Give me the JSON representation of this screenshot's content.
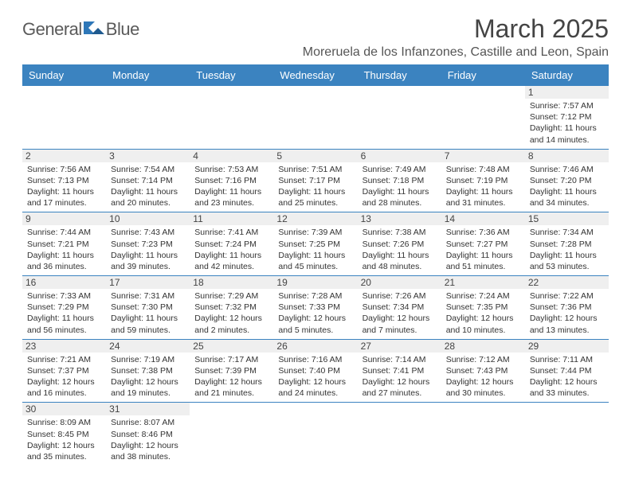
{
  "logo": {
    "text1": "General",
    "text2": "Blue"
  },
  "title": "March 2025",
  "location": "Moreruela de los Infanzones, Castille and Leon, Spain",
  "colors": {
    "header_bg": "#3b83c0",
    "header_text": "#ffffff",
    "daynum_bg": "#efefef",
    "border": "#3b83c0",
    "logo_blue": "#2e77b8",
    "logo_gray": "#5a5a5a"
  },
  "weekdays": [
    "Sunday",
    "Monday",
    "Tuesday",
    "Wednesday",
    "Thursday",
    "Friday",
    "Saturday"
  ],
  "weeks": [
    [
      null,
      null,
      null,
      null,
      null,
      null,
      {
        "n": "1",
        "sr": "Sunrise: 7:57 AM",
        "ss": "Sunset: 7:12 PM",
        "dl": "Daylight: 11 hours and 14 minutes."
      }
    ],
    [
      {
        "n": "2",
        "sr": "Sunrise: 7:56 AM",
        "ss": "Sunset: 7:13 PM",
        "dl": "Daylight: 11 hours and 17 minutes."
      },
      {
        "n": "3",
        "sr": "Sunrise: 7:54 AM",
        "ss": "Sunset: 7:14 PM",
        "dl": "Daylight: 11 hours and 20 minutes."
      },
      {
        "n": "4",
        "sr": "Sunrise: 7:53 AM",
        "ss": "Sunset: 7:16 PM",
        "dl": "Daylight: 11 hours and 23 minutes."
      },
      {
        "n": "5",
        "sr": "Sunrise: 7:51 AM",
        "ss": "Sunset: 7:17 PM",
        "dl": "Daylight: 11 hours and 25 minutes."
      },
      {
        "n": "6",
        "sr": "Sunrise: 7:49 AM",
        "ss": "Sunset: 7:18 PM",
        "dl": "Daylight: 11 hours and 28 minutes."
      },
      {
        "n": "7",
        "sr": "Sunrise: 7:48 AM",
        "ss": "Sunset: 7:19 PM",
        "dl": "Daylight: 11 hours and 31 minutes."
      },
      {
        "n": "8",
        "sr": "Sunrise: 7:46 AM",
        "ss": "Sunset: 7:20 PM",
        "dl": "Daylight: 11 hours and 34 minutes."
      }
    ],
    [
      {
        "n": "9",
        "sr": "Sunrise: 7:44 AM",
        "ss": "Sunset: 7:21 PM",
        "dl": "Daylight: 11 hours and 36 minutes."
      },
      {
        "n": "10",
        "sr": "Sunrise: 7:43 AM",
        "ss": "Sunset: 7:23 PM",
        "dl": "Daylight: 11 hours and 39 minutes."
      },
      {
        "n": "11",
        "sr": "Sunrise: 7:41 AM",
        "ss": "Sunset: 7:24 PM",
        "dl": "Daylight: 11 hours and 42 minutes."
      },
      {
        "n": "12",
        "sr": "Sunrise: 7:39 AM",
        "ss": "Sunset: 7:25 PM",
        "dl": "Daylight: 11 hours and 45 minutes."
      },
      {
        "n": "13",
        "sr": "Sunrise: 7:38 AM",
        "ss": "Sunset: 7:26 PM",
        "dl": "Daylight: 11 hours and 48 minutes."
      },
      {
        "n": "14",
        "sr": "Sunrise: 7:36 AM",
        "ss": "Sunset: 7:27 PM",
        "dl": "Daylight: 11 hours and 51 minutes."
      },
      {
        "n": "15",
        "sr": "Sunrise: 7:34 AM",
        "ss": "Sunset: 7:28 PM",
        "dl": "Daylight: 11 hours and 53 minutes."
      }
    ],
    [
      {
        "n": "16",
        "sr": "Sunrise: 7:33 AM",
        "ss": "Sunset: 7:29 PM",
        "dl": "Daylight: 11 hours and 56 minutes."
      },
      {
        "n": "17",
        "sr": "Sunrise: 7:31 AM",
        "ss": "Sunset: 7:30 PM",
        "dl": "Daylight: 11 hours and 59 minutes."
      },
      {
        "n": "18",
        "sr": "Sunrise: 7:29 AM",
        "ss": "Sunset: 7:32 PM",
        "dl": "Daylight: 12 hours and 2 minutes."
      },
      {
        "n": "19",
        "sr": "Sunrise: 7:28 AM",
        "ss": "Sunset: 7:33 PM",
        "dl": "Daylight: 12 hours and 5 minutes."
      },
      {
        "n": "20",
        "sr": "Sunrise: 7:26 AM",
        "ss": "Sunset: 7:34 PM",
        "dl": "Daylight: 12 hours and 7 minutes."
      },
      {
        "n": "21",
        "sr": "Sunrise: 7:24 AM",
        "ss": "Sunset: 7:35 PM",
        "dl": "Daylight: 12 hours and 10 minutes."
      },
      {
        "n": "22",
        "sr": "Sunrise: 7:22 AM",
        "ss": "Sunset: 7:36 PM",
        "dl": "Daylight: 12 hours and 13 minutes."
      }
    ],
    [
      {
        "n": "23",
        "sr": "Sunrise: 7:21 AM",
        "ss": "Sunset: 7:37 PM",
        "dl": "Daylight: 12 hours and 16 minutes."
      },
      {
        "n": "24",
        "sr": "Sunrise: 7:19 AM",
        "ss": "Sunset: 7:38 PM",
        "dl": "Daylight: 12 hours and 19 minutes."
      },
      {
        "n": "25",
        "sr": "Sunrise: 7:17 AM",
        "ss": "Sunset: 7:39 PM",
        "dl": "Daylight: 12 hours and 21 minutes."
      },
      {
        "n": "26",
        "sr": "Sunrise: 7:16 AM",
        "ss": "Sunset: 7:40 PM",
        "dl": "Daylight: 12 hours and 24 minutes."
      },
      {
        "n": "27",
        "sr": "Sunrise: 7:14 AM",
        "ss": "Sunset: 7:41 PM",
        "dl": "Daylight: 12 hours and 27 minutes."
      },
      {
        "n": "28",
        "sr": "Sunrise: 7:12 AM",
        "ss": "Sunset: 7:43 PM",
        "dl": "Daylight: 12 hours and 30 minutes."
      },
      {
        "n": "29",
        "sr": "Sunrise: 7:11 AM",
        "ss": "Sunset: 7:44 PM",
        "dl": "Daylight: 12 hours and 33 minutes."
      }
    ],
    [
      {
        "n": "30",
        "sr": "Sunrise: 8:09 AM",
        "ss": "Sunset: 8:45 PM",
        "dl": "Daylight: 12 hours and 35 minutes."
      },
      {
        "n": "31",
        "sr": "Sunrise: 8:07 AM",
        "ss": "Sunset: 8:46 PM",
        "dl": "Daylight: 12 hours and 38 minutes."
      },
      null,
      null,
      null,
      null,
      null
    ]
  ]
}
